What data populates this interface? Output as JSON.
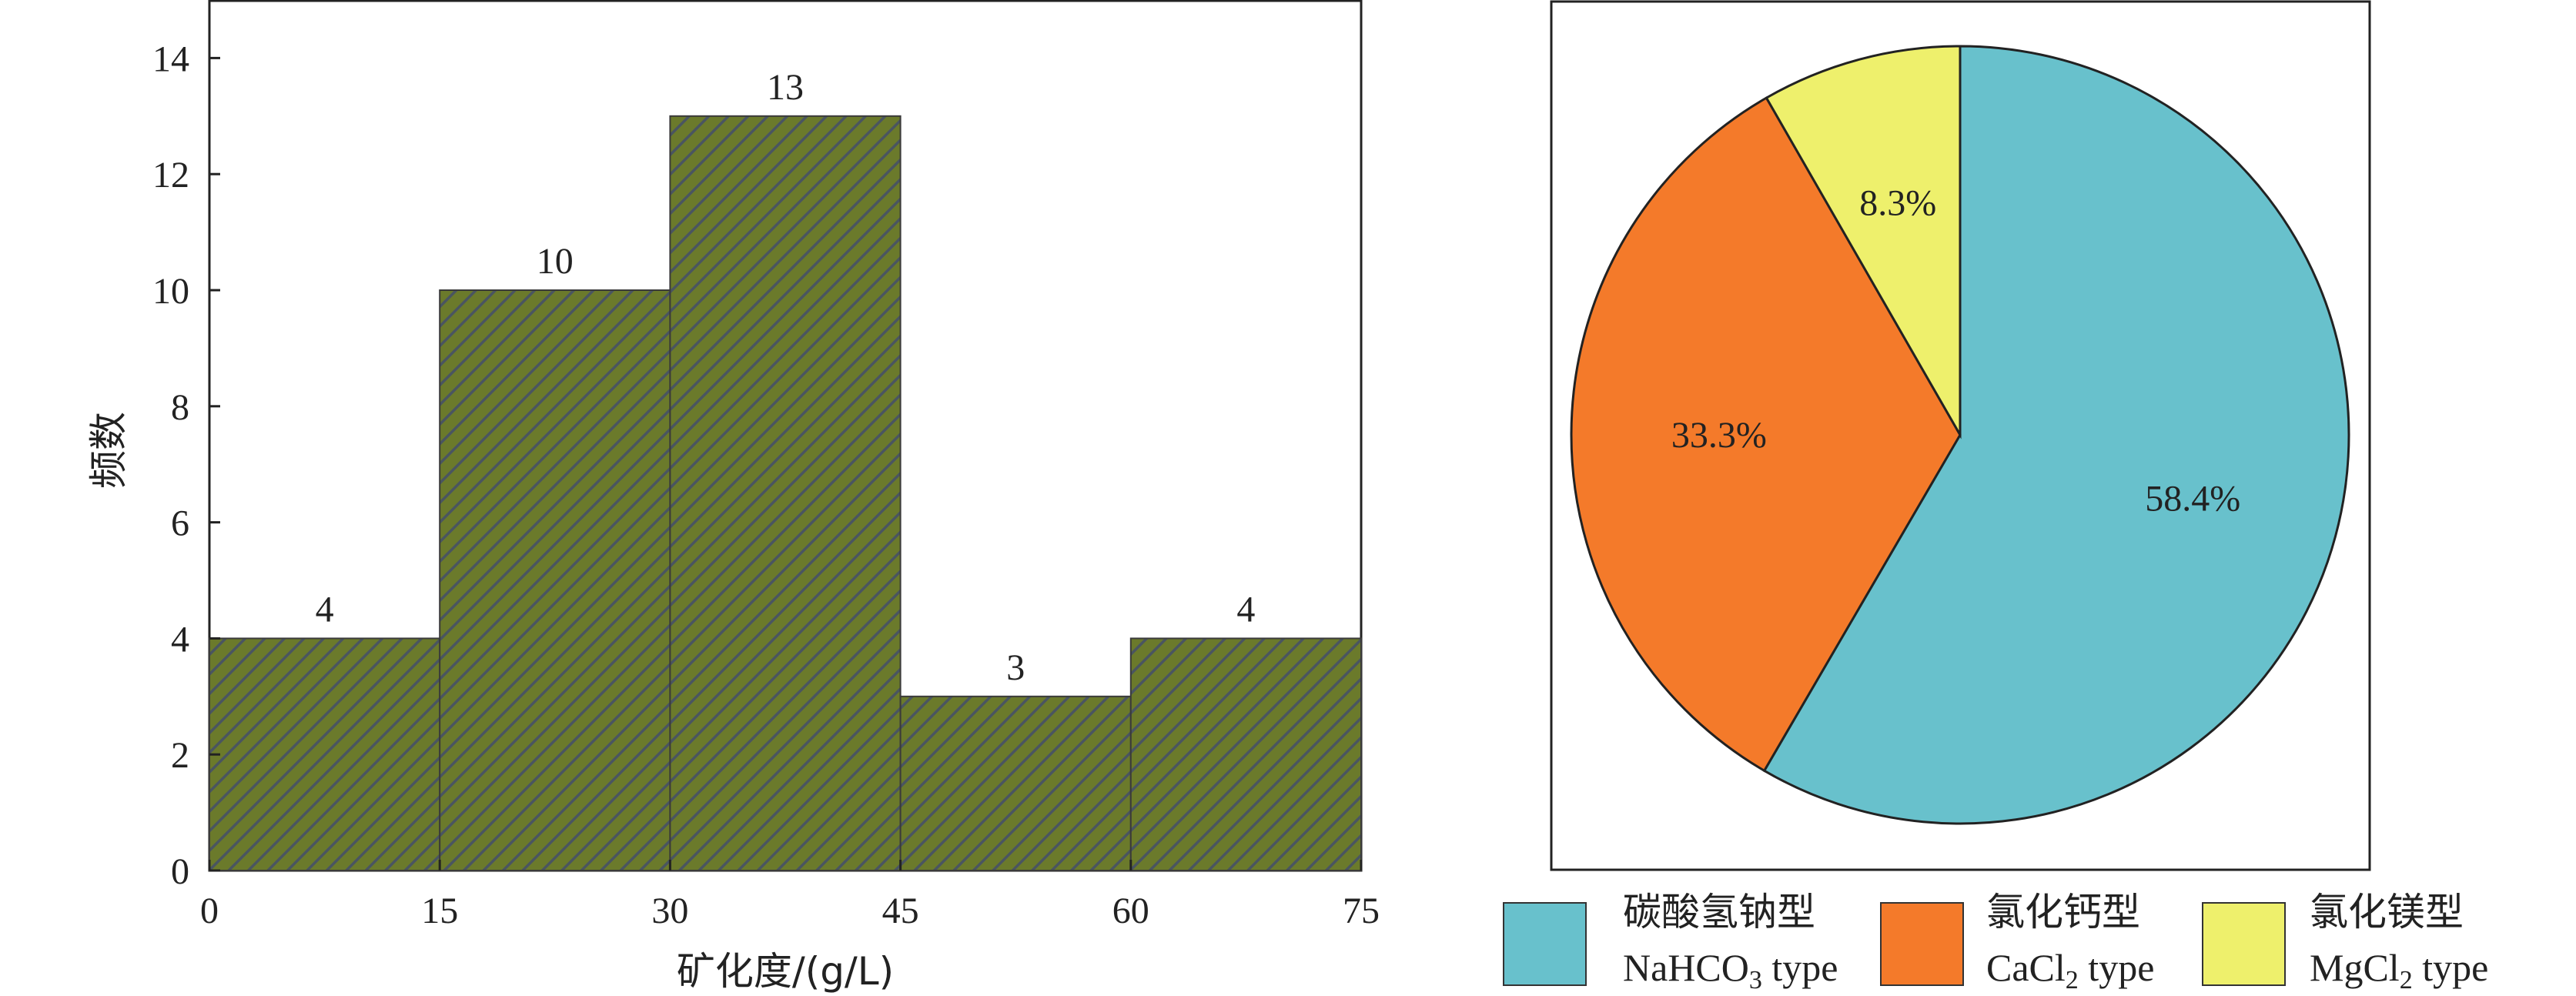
{
  "chart_data": [
    {
      "type": "bar",
      "subtype": "histogram",
      "xlabel": "矿化度/(g/L)",
      "ylabel": "频数",
      "x_ticks": [
        0,
        15,
        30,
        45,
        60,
        75
      ],
      "y_ticks": [
        0,
        2,
        4,
        6,
        8,
        10,
        12,
        14
      ],
      "xlim": [
        0,
        75
      ],
      "ylim": [
        0,
        15
      ],
      "bins": [
        {
          "from": 0,
          "to": 15,
          "value": 4,
          "label": "4"
        },
        {
          "from": 15,
          "to": 30,
          "value": 10,
          "label": "10"
        },
        {
          "from": 30,
          "to": 45,
          "value": 13,
          "label": "13"
        },
        {
          "from": 45,
          "to": 60,
          "value": 3,
          "label": "3"
        },
        {
          "from": 60,
          "to": 75,
          "value": 4,
          "label": "4"
        }
      ],
      "bar_fill": "#6b7a2b",
      "hatch_color": "#4a5560",
      "grid": false
    },
    {
      "type": "pie",
      "start_angle_deg": 90,
      "direction": "clockwise",
      "slices": [
        {
          "label": "58.4%",
          "value": 58.4,
          "name_cn": "碳酸氢钠型",
          "name_pre": "NaHCO",
          "name_sub": "3",
          "name_post": " type",
          "color": "#68c1cc"
        },
        {
          "label": "33.3%",
          "value": 33.3,
          "name_cn": "氯化钙型",
          "name_pre": "CaCl",
          "name_sub": "2",
          "name_post": " type",
          "color": "#f47a2a"
        },
        {
          "label": "8.3%",
          "value": 8.3,
          "name_cn": "氯化镁型",
          "name_pre": "MgCl",
          "name_sub": "2",
          "name_post": " type",
          "color": "#eef06c"
        }
      ],
      "legend_position": "bottom"
    }
  ]
}
